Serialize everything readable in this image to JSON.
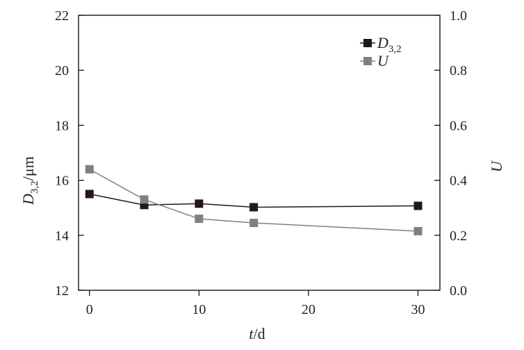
{
  "chart_data": {
    "type": "line",
    "x": [
      0,
      5,
      10,
      15,
      30
    ],
    "xlim": [
      -1,
      32
    ],
    "xticks": [
      "0",
      "10",
      "20",
      "30"
    ],
    "xlabel": {
      "italic": "t",
      "rest": "/d"
    },
    "y_left": {
      "label": {
        "base": "D",
        "sub": "3,2",
        "rest": "/μm"
      },
      "lim": [
        12,
        22
      ],
      "ticks": [
        "12",
        "14",
        "16",
        "18",
        "20",
        "22"
      ]
    },
    "y_right": {
      "label": "U",
      "lim": [
        0.0,
        1.0
      ],
      "ticks": [
        "0.0",
        "0.2",
        "0.4",
        "0.6",
        "0.8",
        "1.0"
      ]
    },
    "series": [
      {
        "name": "D3,2",
        "legend_base": "D",
        "legend_sub": "3,2",
        "axis": "left",
        "color": "#231815",
        "values": [
          15.5,
          15.1,
          15.15,
          15.02,
          15.07
        ]
      },
      {
        "name": "U",
        "legend_base": "U",
        "legend_sub": "",
        "axis": "right",
        "color": "#808080",
        "values": [
          0.44,
          0.33,
          0.26,
          0.245,
          0.215
        ]
      }
    ],
    "legend_position": "top-right",
    "grid": false
  }
}
